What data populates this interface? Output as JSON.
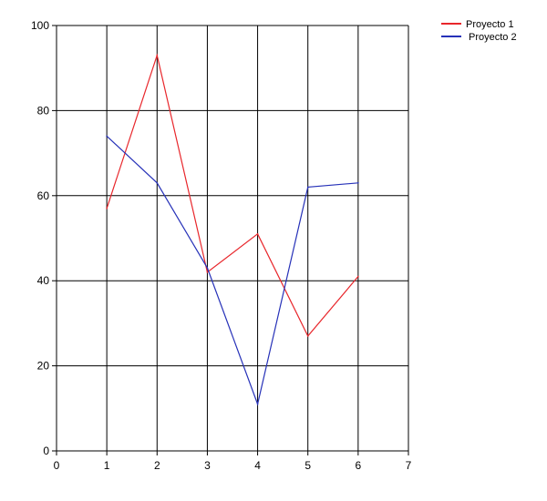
{
  "chart_data": {
    "type": "line",
    "title": "",
    "xlabel": "",
    "ylabel": "",
    "xlim": [
      0,
      7
    ],
    "ylim": [
      0,
      100
    ],
    "x_ticks": [
      0,
      1,
      2,
      3,
      4,
      5,
      6,
      7
    ],
    "y_ticks": [
      0,
      20,
      40,
      60,
      80,
      100
    ],
    "grid": true,
    "legend_position": "top-right",
    "x": [
      1,
      2,
      3,
      4,
      5,
      6
    ],
    "series": [
      {
        "name": "Proyecto 1",
        "color": "#e8262b",
        "values": [
          57,
          93,
          42,
          51,
          27,
          41
        ]
      },
      {
        "name": "Proyecto 2",
        "color": "#2631b8",
        "values": [
          74,
          63,
          43,
          11,
          62,
          63
        ]
      }
    ]
  }
}
